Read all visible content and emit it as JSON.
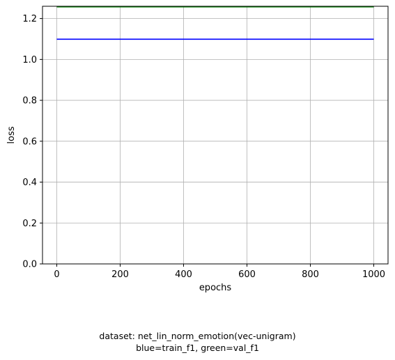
{
  "chart_data": {
    "type": "line",
    "xlabel": "epochs",
    "ylabel": "loss",
    "xlim": [
      -45,
      1045
    ],
    "ylim": [
      0.0,
      1.26
    ],
    "xticks": [
      0,
      200,
      400,
      600,
      800,
      1000
    ],
    "yticks": [
      0.0,
      0.2,
      0.4,
      0.6,
      0.8,
      1.0,
      1.2
    ],
    "grid": true,
    "series": [
      {
        "name": "train_f1",
        "color": "#0000ff",
        "x": [
          0,
          1000
        ],
        "y": [
          1.099,
          1.099
        ]
      },
      {
        "name": "val_f1",
        "color": "#008000",
        "x": [
          0,
          1000
        ],
        "y": [
          1.257,
          1.257
        ]
      }
    ]
  },
  "caption": {
    "line1": "dataset: net_lin_norm_emotion(vec-unigram)",
    "line2": "blue=train_f1, green=val_f1"
  }
}
